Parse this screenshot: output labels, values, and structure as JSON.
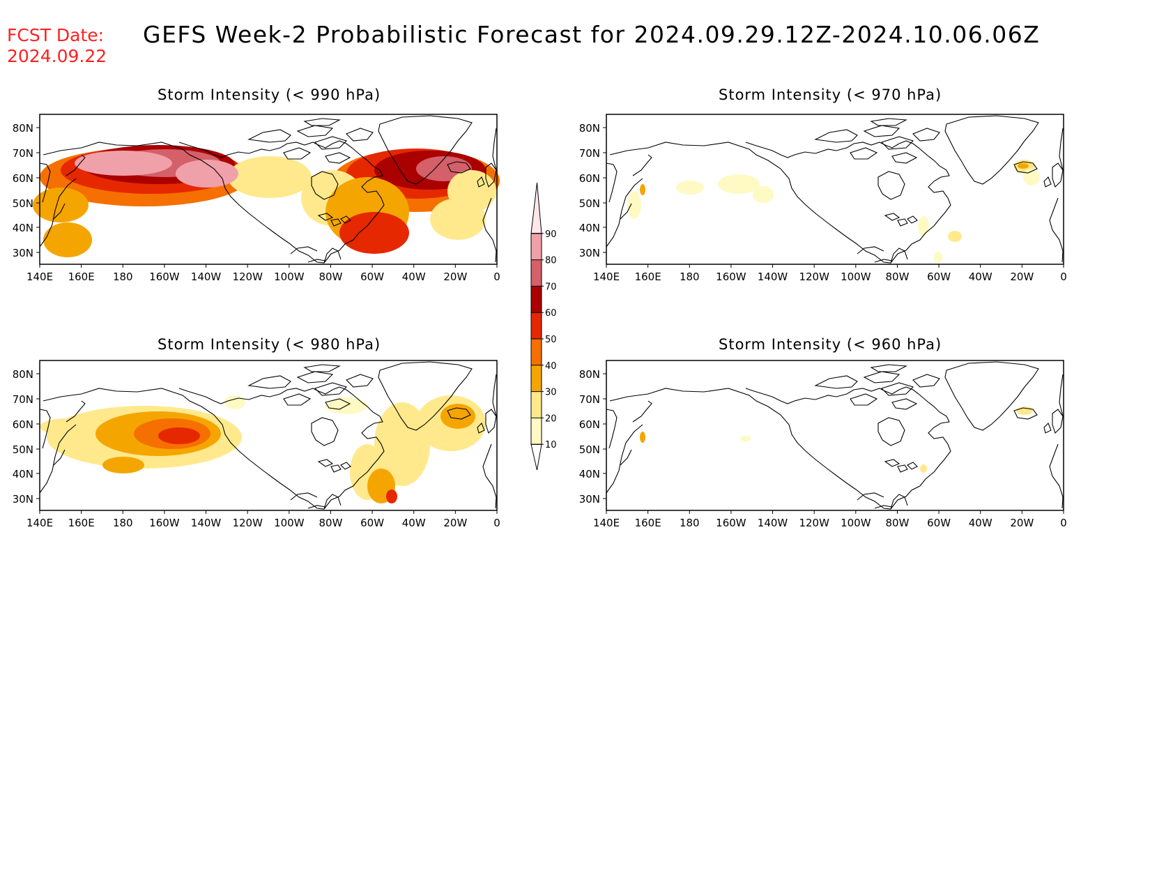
{
  "header": {
    "fcst_label": "FCST Date:",
    "fcst_date": "2024.09.22",
    "title": "GEFS Week-2 Probabilistic Forecast for 2024.09.29.12Z-2024.10.06.06Z"
  },
  "panels": [
    {
      "id": "p990",
      "title": "Storm Intensity (< 990 hPa)"
    },
    {
      "id": "p970",
      "title": "Storm Intensity (< 970 hPa)"
    },
    {
      "id": "p980",
      "title": "Storm Intensity (< 980 hPa)"
    },
    {
      "id": "p960",
      "title": "Storm Intensity (< 960 hPa)"
    }
  ],
  "axes": {
    "lon_labels": [
      "140E",
      "160E",
      "180",
      "160W",
      "140W",
      "120W",
      "100W",
      "80W",
      "60W",
      "40W",
      "20W",
      "0"
    ],
    "lat_labels": [
      "80N",
      "70N",
      "60N",
      "50N",
      "40N",
      "30N"
    ]
  },
  "colorbar": {
    "levels": [
      "10",
      "20",
      "30",
      "40",
      "50",
      "60",
      "70",
      "80",
      "90"
    ],
    "colors": [
      "#fff9c4",
      "#ffe98c",
      "#f5a500",
      "#f57000",
      "#e62800",
      "#aa0000",
      "#d4606a",
      "#f0a0a8",
      "#ffe6ea"
    ]
  }
}
